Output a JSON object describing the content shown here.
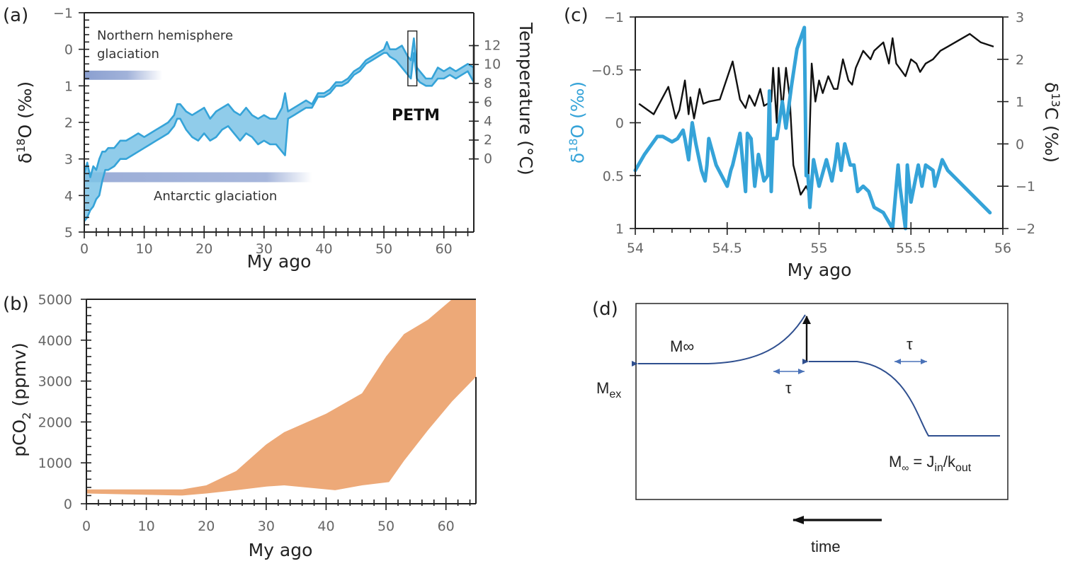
{
  "figure": {
    "panels": {
      "a": {
        "label": "(a)"
      },
      "b": {
        "label": "(b)"
      },
      "c": {
        "label": "(c)"
      },
      "d": {
        "label": "(d)"
      }
    }
  },
  "colors": {
    "d18o_blue": "#35A3D8",
    "d18o_fill": "#7CC3E6",
    "co2_orange": "#EDA978",
    "glaciation_bar": "#8A9FD0",
    "d13c_black": "#111111",
    "diagram_curve": "#2F4F8F",
    "diagram_arrow": "#4A72B8"
  },
  "chart_data": [
    {
      "id": "a",
      "type": "area",
      "title": "",
      "xlabel": "My ago",
      "ylabel": "δ18O (‰)",
      "ylabel_parts": {
        "pre": "δ",
        "sup": "18",
        "post": "O (‰)"
      },
      "y2label": "Temperature (°C)",
      "xlim": [
        0,
        65
      ],
      "ylim": [
        5,
        -1
      ],
      "y_inverted": true,
      "xticks": [
        0,
        10,
        20,
        30,
        40,
        50,
        60
      ],
      "xtick_labels": [
        "0",
        "10",
        "20",
        "30",
        "40",
        "50",
        "60"
      ],
      "yticks": [
        -1,
        0,
        1,
        2,
        3,
        4,
        5
      ],
      "ytick_labels": [
        "−1",
        "0",
        "1",
        "2",
        "3",
        "4",
        "5"
      ],
      "y2ticks": [
        12,
        10,
        8,
        6,
        4,
        2,
        0
      ],
      "y2tick_labels": [
        "12",
        "10",
        "8",
        "6",
        "4",
        "2",
        "0"
      ],
      "y2_mapping_d18o": {
        "12": -0.1,
        "0": 3.0
      },
      "series": [
        {
          "name": "δ18O upper envelope",
          "x": [
            0,
            0.5,
            1,
            1.5,
            2,
            2.5,
            3,
            3.5,
            4,
            5,
            6,
            7,
            8,
            9,
            10,
            11,
            12,
            13,
            14,
            15,
            15.5,
            16,
            17,
            18,
            19,
            20,
            21,
            22,
            23,
            24,
            25,
            26,
            27,
            28,
            29,
            30,
            31,
            32,
            33,
            33.5,
            34,
            35,
            36,
            37,
            38,
            39,
            40,
            41,
            42,
            43,
            44,
            45,
            46,
            47,
            48,
            49,
            50,
            50.5,
            51,
            52,
            53,
            54,
            54.5,
            55,
            55.5,
            56,
            57,
            58,
            59,
            60,
            61,
            62,
            63,
            64,
            65
          ],
          "values": [
            3.4,
            3.1,
            3.5,
            3.2,
            3.3,
            3.0,
            2.8,
            2.8,
            2.7,
            2.7,
            2.5,
            2.5,
            2.4,
            2.3,
            2.4,
            2.3,
            2.2,
            2.1,
            2.0,
            1.8,
            1.5,
            1.5,
            1.7,
            1.8,
            1.7,
            1.6,
            1.9,
            1.7,
            1.6,
            1.5,
            1.7,
            1.8,
            1.6,
            1.8,
            1.9,
            1.8,
            1.9,
            1.9,
            1.6,
            1.2,
            1.7,
            1.6,
            1.5,
            1.4,
            1.5,
            1.2,
            1.2,
            1.1,
            0.9,
            0.9,
            0.8,
            0.6,
            0.5,
            0.3,
            0.2,
            0.1,
            0.0,
            -0.2,
            0.0,
            0.0,
            -0.1,
            0.2,
            0.3,
            -0.3,
            0.5,
            0.6,
            0.8,
            0.8,
            0.5,
            0.6,
            0.5,
            0.6,
            0.5,
            0.4,
            0.5
          ]
        },
        {
          "name": "δ18O lower envelope",
          "x": [
            0,
            0.5,
            1,
            1.5,
            2,
            2.5,
            3,
            3.5,
            4,
            5,
            6,
            7,
            8,
            9,
            10,
            11,
            12,
            13,
            14,
            15,
            15.5,
            16,
            17,
            18,
            19,
            20,
            21,
            22,
            23,
            24,
            25,
            26,
            27,
            28,
            29,
            30,
            31,
            32,
            33,
            33.5,
            34,
            35,
            36,
            37,
            38,
            39,
            40,
            41,
            42,
            43,
            44,
            45,
            46,
            47,
            48,
            49,
            50,
            50.5,
            51,
            52,
            53,
            54,
            54.5,
            55,
            55.5,
            56,
            57,
            58,
            59,
            60,
            61,
            62,
            63,
            64,
            65
          ],
          "values": [
            4.7,
            4.6,
            4.4,
            4.3,
            4.1,
            4.0,
            3.6,
            3.3,
            3.3,
            3.2,
            3.0,
            3.0,
            2.9,
            2.8,
            2.7,
            2.6,
            2.5,
            2.4,
            2.3,
            2.1,
            1.9,
            1.9,
            2.2,
            2.4,
            2.5,
            2.3,
            2.5,
            2.4,
            2.2,
            2.1,
            2.3,
            2.5,
            2.3,
            2.4,
            2.6,
            2.5,
            2.6,
            2.6,
            2.8,
            2.9,
            1.9,
            1.8,
            1.7,
            1.6,
            1.6,
            1.3,
            1.3,
            1.2,
            1.0,
            1.0,
            0.9,
            0.7,
            0.6,
            0.4,
            0.3,
            0.2,
            0.1,
            0.1,
            0.2,
            0.3,
            0.5,
            0.7,
            0.8,
            0.1,
            0.8,
            0.9,
            1.0,
            1.0,
            0.8,
            0.8,
            0.7,
            0.8,
            0.7,
            0.6,
            0.9
          ]
        }
      ],
      "annotations": [
        {
          "text_line1": "Northern hemisphere",
          "text_line2": "glaciation",
          "bar_x": [
            0,
            13
          ],
          "bar_y": 0.7
        },
        {
          "text": "Antarctic glaciation",
          "bar_x": [
            0,
            38
          ],
          "bar_y": 3.5
        },
        {
          "text": "PETM",
          "box_x": [
            54,
            55.5
          ],
          "box_y": [
            -0.5,
            1.0
          ]
        }
      ]
    },
    {
      "id": "b",
      "type": "area",
      "title": "",
      "xlabel": "My ago",
      "ylabel": "pCO2 (ppmv)",
      "ylabel_parts": {
        "pre": "pCO",
        "sub": "2",
        "post": " (ppmv)"
      },
      "xlim": [
        0,
        65
      ],
      "ylim": [
        0,
        5000
      ],
      "xticks": [
        0,
        10,
        20,
        30,
        40,
        50,
        60
      ],
      "xtick_labels": [
        "0",
        "10",
        "20",
        "30",
        "40",
        "50",
        "60"
      ],
      "yticks": [
        0,
        1000,
        2000,
        3000,
        4000,
        5000
      ],
      "ytick_labels": [
        "0",
        "1000",
        "2000",
        "3000",
        "4000",
        "5000"
      ],
      "series": [
        {
          "name": "pCO2 upper bound",
          "x": [
            0,
            16,
            20,
            25,
            30,
            33,
            40,
            46,
            50,
            53,
            57,
            61,
            65
          ],
          "values": [
            350,
            350,
            450,
            800,
            1450,
            1750,
            2200,
            2700,
            3600,
            4150,
            4500,
            5000,
            5000
          ]
        },
        {
          "name": "pCO2 lower bound",
          "x": [
            0,
            16,
            20,
            25,
            30,
            33,
            41.5,
            46,
            50.5,
            53,
            57,
            61,
            65
          ],
          "values": [
            250,
            200,
            250,
            330,
            420,
            450,
            330,
            450,
            530,
            1050,
            1800,
            2500,
            3100
          ]
        }
      ]
    },
    {
      "id": "c",
      "type": "line",
      "title": "",
      "xlabel": "My ago",
      "ylabel": "δ18O (‰)",
      "ylabel_parts": {
        "pre": "δ",
        "sup": "18",
        "post": "O (‰)"
      },
      "y2label": "δ13C (‰)",
      "y2label_parts": {
        "pre": "δ",
        "sup": "13",
        "post": "C (‰)"
      },
      "xlim": [
        54,
        56
      ],
      "ylim": [
        1,
        -1
      ],
      "y_inverted": true,
      "y2lim": [
        -2,
        3
      ],
      "xticks": [
        54,
        54.5,
        55,
        55.5,
        56
      ],
      "xtick_labels": [
        "54",
        "54.5",
        "55",
        "55.5",
        "56"
      ],
      "yticks": [
        -1,
        -0.5,
        0,
        0.5,
        1
      ],
      "ytick_labels": [
        "−1",
        "−0.5",
        "0",
        "0.5",
        "1"
      ],
      "y2ticks": [
        3,
        2,
        1,
        0,
        -1,
        -2
      ],
      "y2tick_labels": [
        "3",
        "2",
        "1",
        "0",
        "−1",
        "−2"
      ],
      "series": [
        {
          "name": "δ18O",
          "axis": "left",
          "x": [
            54.0,
            54.05,
            54.12,
            54.15,
            54.18,
            54.2,
            54.23,
            54.26,
            54.27,
            54.29,
            54.31,
            54.33,
            54.36,
            54.38,
            54.39,
            54.4,
            54.44,
            54.5,
            54.52,
            54.53,
            54.57,
            54.6,
            54.61,
            54.63,
            54.65,
            54.67,
            54.7,
            54.72,
            54.73,
            54.74,
            54.75,
            54.77,
            54.8,
            54.82,
            54.85,
            54.88,
            54.92,
            54.93,
            54.94,
            54.95,
            54.97,
            55.0,
            55.04,
            55.07,
            55.09,
            55.1,
            55.12,
            55.14,
            55.17,
            55.19,
            55.21,
            55.24,
            55.27,
            55.3,
            55.35,
            55.4,
            55.43,
            55.44,
            55.47,
            55.48,
            55.5,
            55.54,
            55.56,
            55.58,
            55.62,
            55.63,
            55.67,
            55.7,
            55.93
          ],
          "values": [
            0.45,
            0.3,
            0.13,
            0.13,
            0.16,
            0.18,
            0.15,
            0.07,
            0.15,
            0.35,
            0.0,
            0.2,
            0.45,
            0.55,
            0.4,
            0.15,
            0.4,
            0.6,
            0.45,
            0.4,
            0.1,
            0.65,
            0.1,
            0.15,
            0.6,
            0.3,
            0.55,
            0.5,
            -0.3,
            0.65,
            0.15,
            0.15,
            -0.2,
            0.05,
            -0.35,
            -0.7,
            -0.9,
            0.5,
            0.5,
            0.8,
            0.35,
            0.6,
            0.35,
            0.55,
            0.35,
            0.2,
            0.45,
            0.2,
            0.4,
            0.4,
            0.65,
            0.6,
            0.65,
            0.8,
            0.85,
            1.0,
            0.4,
            0.6,
            1.0,
            0.4,
            0.75,
            0.4,
            0.6,
            0.4,
            0.45,
            0.6,
            0.35,
            0.45,
            0.85
          ]
        },
        {
          "name": "δ13C",
          "axis": "right",
          "x": [
            54.02,
            54.1,
            54.18,
            54.22,
            54.24,
            54.27,
            54.29,
            54.3,
            54.32,
            54.35,
            54.37,
            54.4,
            54.46,
            54.53,
            54.57,
            54.6,
            54.62,
            54.65,
            54.68,
            54.7,
            54.72,
            54.74,
            54.75,
            54.77,
            54.78,
            54.8,
            54.82,
            54.84,
            54.86,
            54.9,
            54.93,
            54.94,
            54.96,
            54.98,
            55.0,
            55.02,
            55.05,
            55.08,
            55.1,
            55.13,
            55.16,
            55.18,
            55.2,
            55.24,
            55.28,
            55.3,
            55.35,
            55.38,
            55.4,
            55.42,
            55.47,
            55.5,
            55.53,
            55.55,
            55.58,
            55.62,
            55.66,
            55.7,
            55.82,
            55.88,
            55.95
          ],
          "values": [
            0.95,
            0.7,
            1.35,
            0.6,
            0.8,
            1.5,
            0.7,
            1.1,
            0.6,
            1.3,
            0.95,
            1.0,
            1.05,
            1.95,
            1.05,
            0.85,
            1.15,
            0.9,
            1.3,
            0.9,
            0.95,
            1.0,
            1.8,
            0.5,
            1.8,
            0.8,
            1.8,
            1.1,
            -0.5,
            -1.2,
            -1.0,
            -1.1,
            1.9,
            1.0,
            1.5,
            1.2,
            1.6,
            1.3,
            1.3,
            2.0,
            1.5,
            1.4,
            1.8,
            2.2,
            2.0,
            2.2,
            2.4,
            1.9,
            2.5,
            1.9,
            1.6,
            2.0,
            1.9,
            1.7,
            1.9,
            2.0,
            2.2,
            2.3,
            2.6,
            2.4,
            2.3
          ]
        }
      ]
    },
    {
      "id": "d",
      "type": "diagram",
      "title": "",
      "labels": {
        "m_inf_top": "M∞",
        "m_ex": {
          "main": "M",
          "sub": "ex"
        },
        "tau_left": "τ",
        "tau_right": "τ",
        "m_inf_eq": {
          "m": "M",
          "inf": "∞",
          "eq": " = J",
          "in": "in",
          "slash": "/k",
          "out": "out"
        },
        "time": "time"
      }
    }
  ]
}
